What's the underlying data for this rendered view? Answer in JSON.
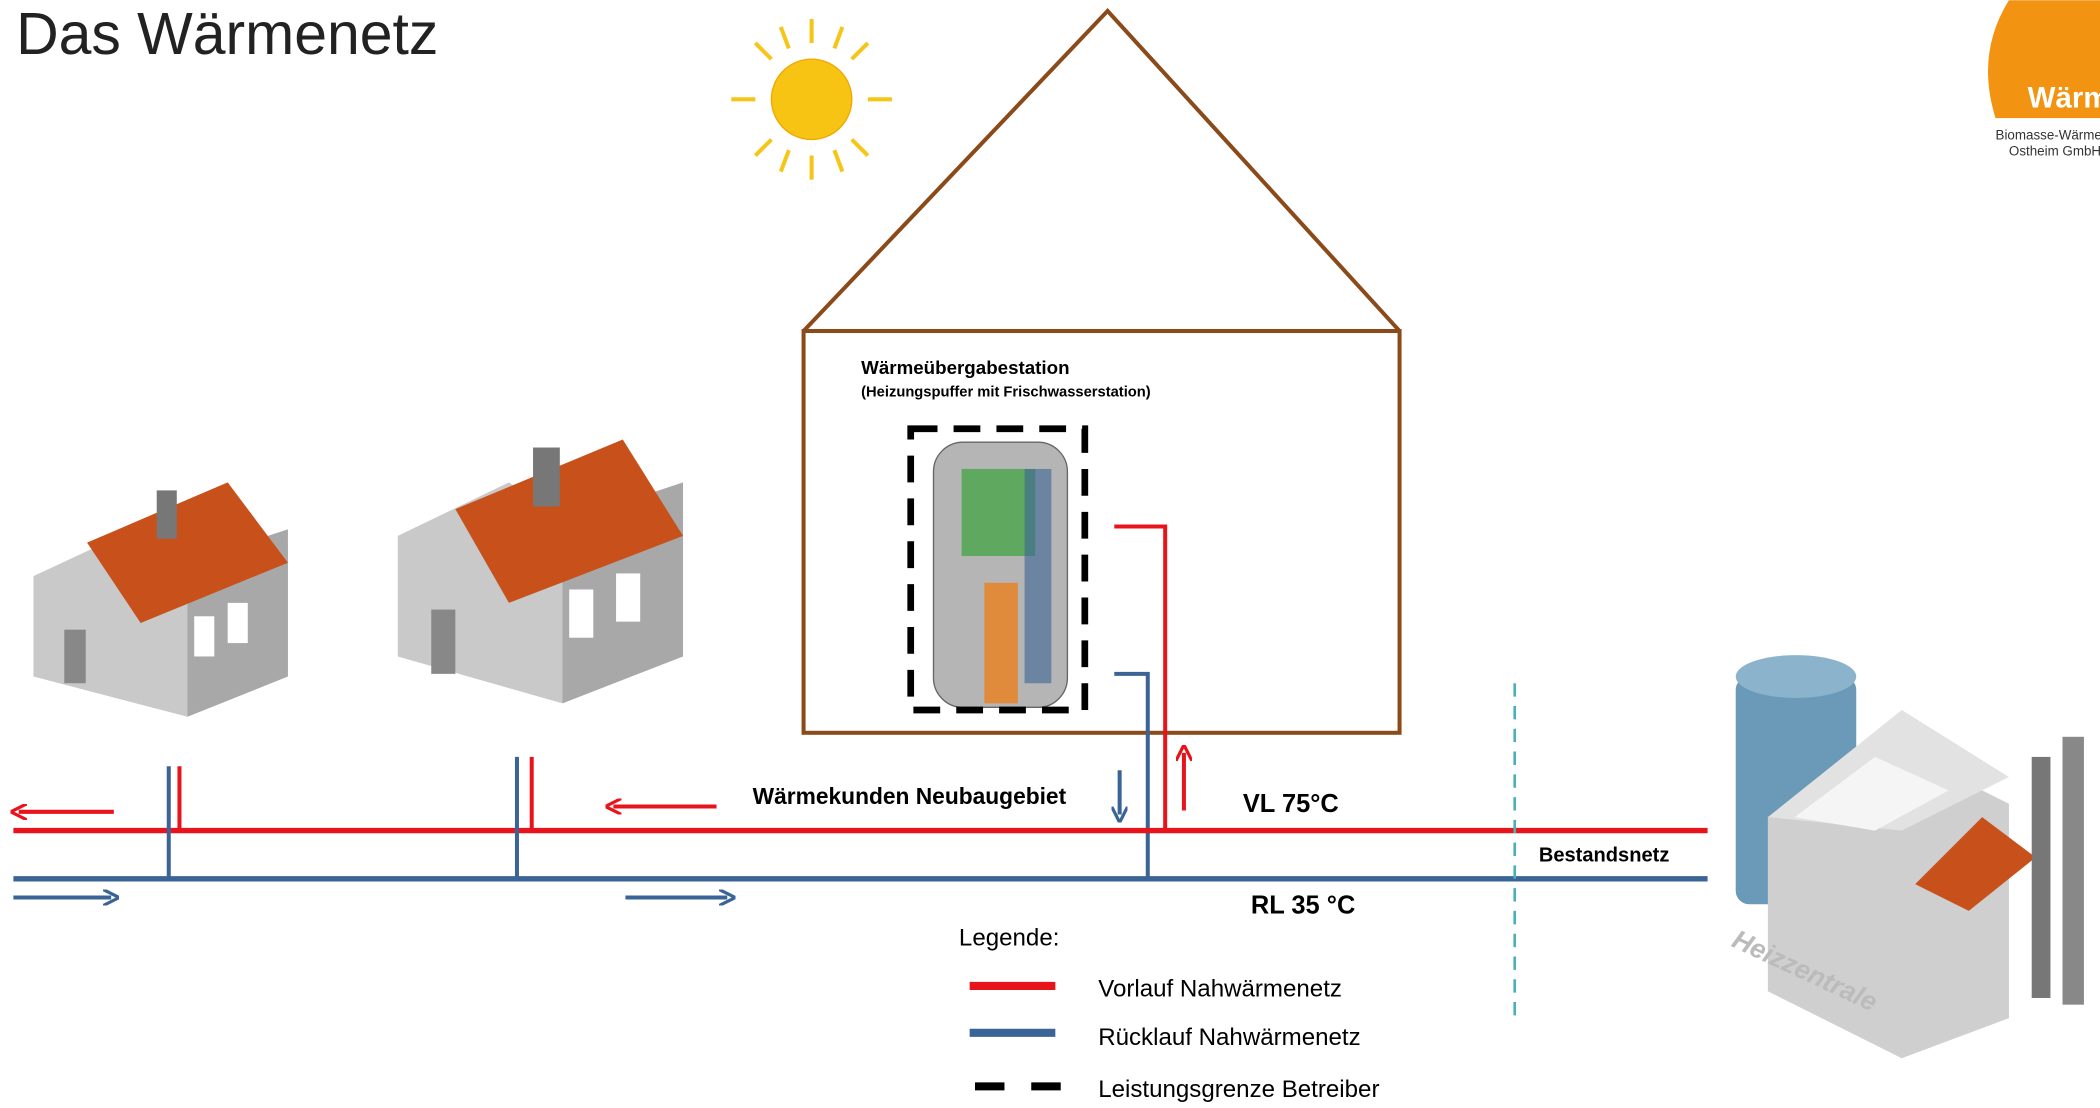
{
  "header": {
    "title": "Das Wärmenetz"
  },
  "logo": {
    "brand": "Wärme",
    "line1": "Biomasse-Wärme",
    "line2": "Ostheim GmbH"
  },
  "station": {
    "title": "Wärmeübergabestation",
    "subtitle": "(Heizungspuffer mit Frischwasserstation)"
  },
  "labels": {
    "customers": "Wärmekunden Neubaugebiet",
    "supply": "VL 75°C",
    "return": "RL 35 °C",
    "existing": "Bestandsnetz",
    "plant": "Heizzentrale"
  },
  "legend": {
    "title": "Legende:",
    "items": [
      "Vorlauf Nahwärmenetz",
      "Rücklauf Nahwärmenetz",
      "Leistungsgrenze Betreiber"
    ]
  }
}
